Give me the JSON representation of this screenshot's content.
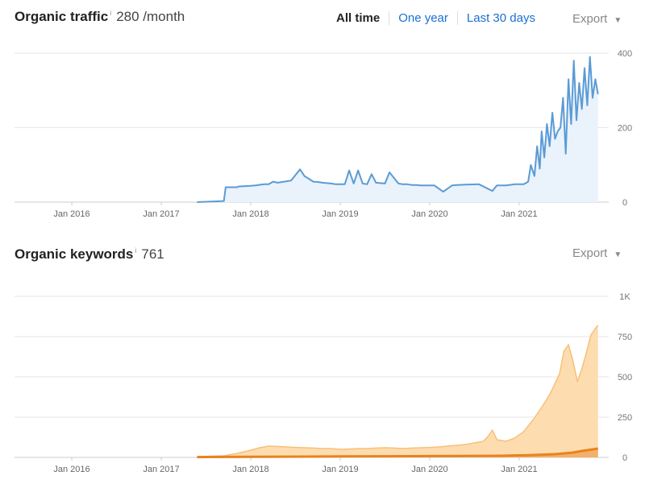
{
  "traffic": {
    "title": "Organic traffic",
    "info_icon": "info-icon",
    "headline_value": "280 /month",
    "tabs": [
      {
        "label": "All time",
        "active": true
      },
      {
        "label": "One year",
        "active": false
      },
      {
        "label": "Last 30 days",
        "active": false
      }
    ],
    "export_label": "Export"
  },
  "keywords": {
    "title": "Organic keywords",
    "info_icon": "info-icon",
    "headline_value": "761",
    "export_label": "Export"
  },
  "colors": {
    "traffic_line": "#5b9bd5",
    "traffic_fill": "#eaf2fb",
    "keywords_fill": "#fddcb0",
    "keywords_line": "#f8c07a",
    "keywords_top3": "#e8831d",
    "grid": "#e6e6e6",
    "tab_link": "#1a6fd1"
  },
  "chart_data": [
    {
      "type": "area",
      "x_tick_labels": [
        "Jan 2016",
        "Jan 2017",
        "Jan 2018",
        "Jan 2019",
        "Jan 2020",
        "Jan 2021"
      ],
      "y_tick_labels": [
        "400",
        "200",
        "0"
      ],
      "ylim": [
        0,
        400
      ],
      "grid": true,
      "series": [
        {
          "x": [
            2017.4,
            2017.7,
            2017.72,
            2017.85,
            2017.86,
            2018.0,
            2018.05,
            2018.15,
            2018.2,
            2018.25,
            2018.3,
            2018.4,
            2018.45,
            2018.55,
            2018.6,
            2018.7,
            2018.75,
            2018.8,
            2018.9,
            2018.95,
            2019.05,
            2019.1,
            2019.15,
            2019.2,
            2019.25,
            2019.3,
            2019.35,
            2019.4,
            2019.5,
            2019.55,
            2019.65,
            2019.7,
            2019.75,
            2019.8,
            2019.85,
            2019.9,
            2019.95,
            2020.05,
            2020.15,
            2020.25,
            2020.3,
            2020.4,
            2020.55,
            2020.7,
            2020.75,
            2020.85,
            2020.95,
            2021.05,
            2021.1,
            2021.13,
            2021.17,
            2021.2,
            2021.23,
            2021.25,
            2021.28,
            2021.31,
            2021.34,
            2021.37,
            2021.4,
            2021.43,
            2021.46,
            2021.49,
            2021.52,
            2021.55,
            2021.58,
            2021.61,
            2021.64,
            2021.67,
            2021.7,
            2021.73,
            2021.76,
            2021.79,
            2021.82,
            2021.85,
            2021.88
          ],
          "y": [
            0,
            3,
            40,
            40,
            42,
            44,
            45,
            48,
            48,
            55,
            52,
            56,
            58,
            88,
            70,
            55,
            54,
            52,
            50,
            48,
            48,
            85,
            50,
            85,
            50,
            48,
            75,
            52,
            50,
            80,
            50,
            48,
            48,
            46,
            46,
            45,
            45,
            45,
            28,
            45,
            46,
            47,
            48,
            30,
            45,
            45,
            48,
            48,
            55,
            100,
            70,
            150,
            90,
            190,
            120,
            210,
            150,
            240,
            170,
            190,
            200,
            280,
            130,
            330,
            210,
            380,
            220,
            320,
            250,
            360,
            260,
            390,
            280,
            330,
            290
          ],
          "unit": "traffic"
        }
      ]
    },
    {
      "type": "area",
      "x_tick_labels": [
        "Jan 2016",
        "Jan 2017",
        "Jan 2018",
        "Jan 2019",
        "Jan 2020",
        "Jan 2021"
      ],
      "y_tick_labels": [
        "1K",
        "750",
        "500",
        "250",
        "0"
      ],
      "ylim": [
        0,
        1000
      ],
      "grid": true,
      "series": [
        {
          "x": [
            2017.4,
            2017.7,
            2017.85,
            2018.0,
            2018.1,
            2018.2,
            2018.3,
            2018.4,
            2018.5,
            2018.6,
            2018.7,
            2018.8,
            2018.9,
            2019.0,
            2019.1,
            2019.2,
            2019.3,
            2019.4,
            2019.5,
            2019.6,
            2019.7,
            2019.8,
            2019.9,
            2020.0,
            2020.1,
            2020.2,
            2020.3,
            2020.4,
            2020.5,
            2020.6,
            2020.65,
            2020.7,
            2020.75,
            2020.85,
            2020.95,
            2021.05,
            2021.15,
            2021.25,
            2021.35,
            2021.45,
            2021.5,
            2021.55,
            2021.6,
            2021.65,
            2021.7,
            2021.75,
            2021.8,
            2021.85,
            2021.88
          ],
          "y": [
            5,
            10,
            25,
            45,
            60,
            70,
            68,
            65,
            62,
            60,
            58,
            55,
            55,
            50,
            52,
            55,
            55,
            58,
            60,
            58,
            55,
            58,
            60,
            62,
            65,
            70,
            75,
            80,
            90,
            100,
            130,
            170,
            110,
            100,
            120,
            160,
            230,
            310,
            400,
            520,
            660,
            700,
            600,
            470,
            550,
            650,
            760,
            800,
            820
          ]
        },
        {
          "x": [
            2017.4,
            2018.0,
            2019.0,
            2020.0,
            2020.8,
            2021.1,
            2021.4,
            2021.6,
            2021.7,
            2021.8,
            2021.88
          ],
          "y": [
            2,
            4,
            6,
            8,
            10,
            14,
            20,
            30,
            40,
            48,
            55
          ]
        }
      ]
    }
  ]
}
